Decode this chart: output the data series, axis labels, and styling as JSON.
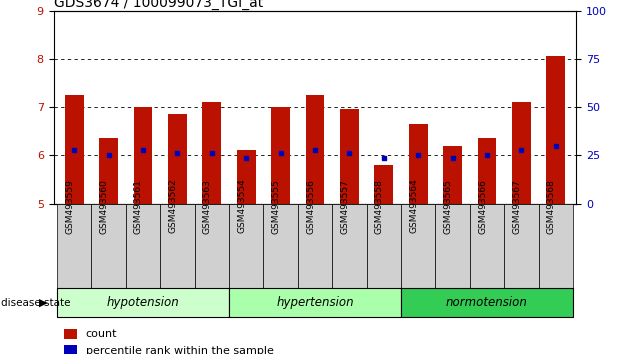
{
  "title": "GDS3674 / 100099073_TGI_at",
  "samples": [
    "GSM493559",
    "GSM493560",
    "GSM493561",
    "GSM493562",
    "GSM493563",
    "GSM493554",
    "GSM493555",
    "GSM493556",
    "GSM493557",
    "GSM493558",
    "GSM493564",
    "GSM493565",
    "GSM493566",
    "GSM493567",
    "GSM493568"
  ],
  "count_values": [
    7.25,
    6.35,
    7.0,
    6.85,
    7.1,
    6.1,
    7.0,
    7.25,
    6.95,
    5.8,
    6.65,
    6.2,
    6.35,
    7.1,
    8.05
  ],
  "percentile_values": [
    6.1,
    6.0,
    6.1,
    6.05,
    6.05,
    5.95,
    6.05,
    6.1,
    6.05,
    5.95,
    6.0,
    5.95,
    6.0,
    6.1,
    6.2
  ],
  "groups": [
    {
      "name": "hypotension",
      "indices": [
        0,
        1,
        2,
        3,
        4
      ],
      "color": "#AAFFAA"
    },
    {
      "name": "hypertension",
      "indices": [
        5,
        6,
        7,
        8,
        9
      ],
      "color": "#AAFFAA"
    },
    {
      "name": "normotension",
      "indices": [
        10,
        11,
        12,
        13,
        14
      ],
      "color": "#33CC55"
    }
  ],
  "ylim": [
    5,
    9
  ],
  "yticks_left": [
    5,
    6,
    7,
    8,
    9
  ],
  "yticks_right": [
    0,
    25,
    50,
    75,
    100
  ],
  "bar_color": "#BB1100",
  "dot_color": "#0000BB",
  "grid_color": "#000000",
  "bar_width": 0.55,
  "base": 5,
  "legend_count_label": "count",
  "legend_percentile_label": "percentile rank within the sample",
  "disease_state_label": "disease state"
}
